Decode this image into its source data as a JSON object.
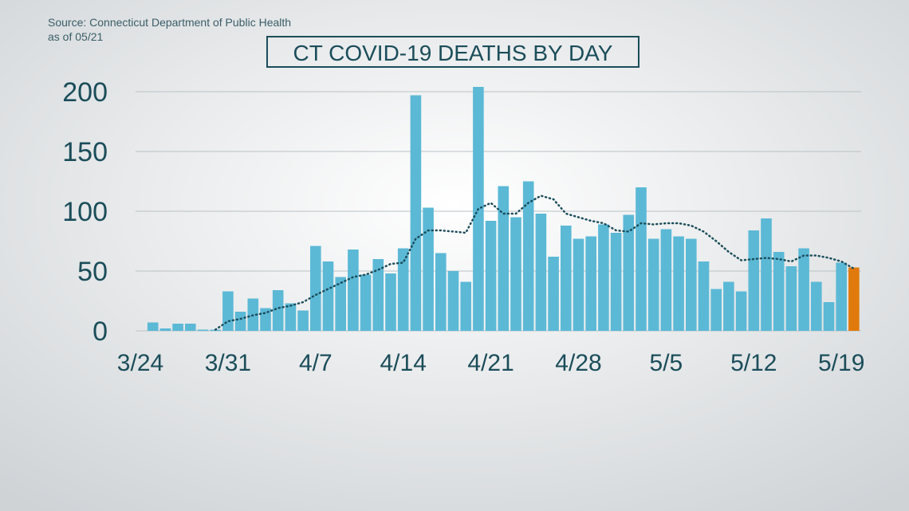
{
  "source": "Source: Connecticut Department of Public Health",
  "as_of": "as of 05/21",
  "chart_data": {
    "type": "bar",
    "title": "CT COVID-19 DEATHS BY DAY",
    "categories": [
      "3/24",
      null,
      null,
      null,
      null,
      null,
      null,
      "3/31",
      null,
      null,
      null,
      null,
      null,
      null,
      "4/7",
      null,
      null,
      null,
      null,
      null,
      null,
      "4/14",
      null,
      null,
      null,
      null,
      null,
      null,
      "4/21",
      null,
      null,
      null,
      null,
      null,
      null,
      "4/28",
      null,
      null,
      null,
      null,
      null,
      null,
      "5/5",
      null,
      null,
      null,
      null,
      null,
      null,
      "5/12",
      null,
      null,
      null,
      null,
      null,
      null,
      "5/19",
      null
    ],
    "series": [
      {
        "color": "#5bb9d6",
        "last_color": "#e07a0c",
        "values": [
          null,
          7,
          2,
          6,
          6,
          1,
          1,
          33,
          16,
          27,
          19,
          34,
          23,
          17,
          71,
          58,
          45,
          68,
          47,
          60,
          48,
          69,
          197,
          103,
          65,
          50,
          41,
          204,
          92,
          121,
          95,
          125,
          98,
          62,
          88,
          77,
          79,
          89,
          82,
          97,
          120,
          77,
          85,
          79,
          77,
          58,
          35,
          41,
          33,
          84,
          94,
          66,
          54,
          69,
          41,
          24,
          57,
          53
        ]
      },
      {
        "type": "line",
        "color": "#1b4d5a",
        "values": [
          null,
          null,
          null,
          null,
          null,
          null,
          1,
          8,
          10,
          13,
          15,
          19,
          21,
          24,
          30,
          35,
          40,
          45,
          47,
          51,
          56,
          57,
          77,
          84,
          84,
          83,
          82,
          102,
          107,
          98,
          98,
          107,
          113,
          110,
          98,
          95,
          92,
          90,
          84,
          83,
          90,
          89,
          90,
          90,
          88,
          83,
          75,
          66,
          59,
          60,
          61,
          60,
          58,
          63,
          63,
          61,
          58,
          52
        ]
      }
    ],
    "ylim": [
      0,
      200
    ],
    "yticks": [
      0,
      50,
      100,
      150,
      200
    ],
    "grid": true
  }
}
